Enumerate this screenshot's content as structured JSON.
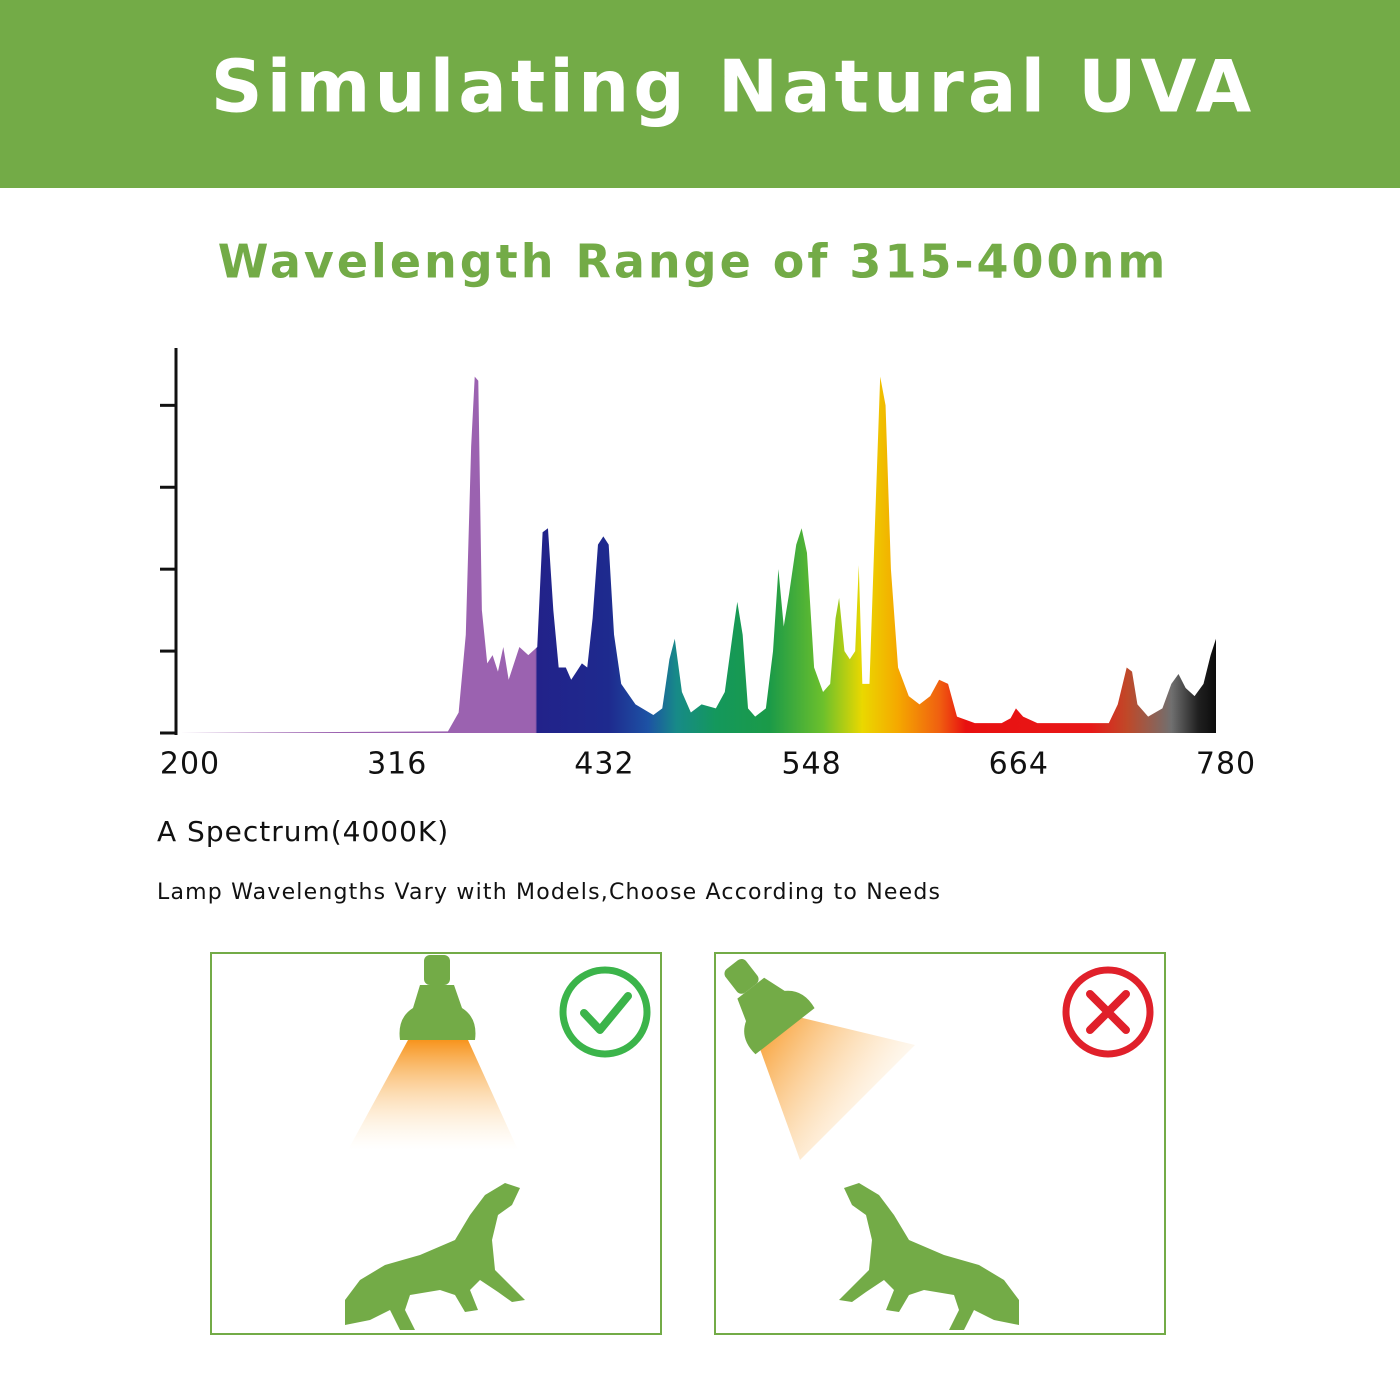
{
  "header": {
    "title": "Simulating Natural UVA"
  },
  "subtitle": "Wavelength Range of 315-400nm",
  "chart_data": {
    "type": "area",
    "caption": "A Spectrum(4000K)",
    "note": "Lamp Wavelengths Vary with Models,Choose According to Needs",
    "xlim": [
      200,
      780
    ],
    "xticks": [
      200,
      316,
      432,
      548,
      664,
      780
    ],
    "ylim": [
      0,
      4.7
    ],
    "yticks": [
      0,
      1,
      2,
      3,
      4
    ],
    "x": [
      200,
      350,
      356,
      360,
      363,
      365,
      367,
      369,
      372,
      375,
      378,
      381,
      384,
      387,
      390,
      395,
      400,
      403,
      406,
      409,
      412,
      416,
      419,
      422,
      425,
      428,
      431,
      434,
      437,
      440,
      443,
      447,
      455,
      465,
      470,
      474,
      477,
      481,
      486,
      492,
      500,
      505,
      510,
      512,
      515,
      518,
      522,
      528,
      532,
      535,
      538,
      541,
      545,
      548,
      551,
      555,
      560,
      564,
      567,
      569,
      572,
      575,
      578,
      580,
      582,
      586,
      589,
      592,
      595,
      598,
      602,
      608,
      614,
      620,
      625,
      630,
      635,
      645,
      660,
      665,
      668,
      672,
      680,
      700,
      720,
      725,
      730,
      733,
      736,
      742,
      750,
      755,
      759,
      763,
      768,
      773,
      777,
      780
    ],
    "values": [
      0,
      0.02,
      0.25,
      1.2,
      3.5,
      4.35,
      4.3,
      1.5,
      0.85,
      0.95,
      0.75,
      1.05,
      0.65,
      0.85,
      1.05,
      0.95,
      1.05,
      2.45,
      2.5,
      1.5,
      0.8,
      0.8,
      0.65,
      0.75,
      0.85,
      0.8,
      1.4,
      2.3,
      2.4,
      2.3,
      1.2,
      0.6,
      0.35,
      0.22,
      0.3,
      0.9,
      1.15,
      0.5,
      0.25,
      0.35,
      0.3,
      0.5,
      1.3,
      1.6,
      1.2,
      0.3,
      0.2,
      0.3,
      1.0,
      2.0,
      1.3,
      1.7,
      2.3,
      2.5,
      2.2,
      0.8,
      0.5,
      0.6,
      1.4,
      1.65,
      1.0,
      0.9,
      1.0,
      2.05,
      0.6,
      0.6,
      2.5,
      4.35,
      4.0,
      2.0,
      0.8,
      0.45,
      0.35,
      0.45,
      0.65,
      0.6,
      0.2,
      0.12,
      0.12,
      0.18,
      0.3,
      0.2,
      0.12,
      0.12,
      0.12,
      0.35,
      0.8,
      0.75,
      0.35,
      0.2,
      0.3,
      0.6,
      0.72,
      0.55,
      0.45,
      0.6,
      0.95,
      1.15
    ],
    "fill_stops": [
      {
        "x": 200,
        "color": "#9b62b0"
      },
      {
        "x": 399,
        "color": "#9b62b0"
      },
      {
        "x": 400,
        "color": "#22228a"
      },
      {
        "x": 440,
        "color": "#1e2a8e"
      },
      {
        "x": 462,
        "color": "#1d52a4"
      },
      {
        "x": 478,
        "color": "#178a88"
      },
      {
        "x": 500,
        "color": "#14985c"
      },
      {
        "x": 530,
        "color": "#1b9a48"
      },
      {
        "x": 560,
        "color": "#6cc02c"
      },
      {
        "x": 582,
        "color": "#ead800"
      },
      {
        "x": 602,
        "color": "#f5a800"
      },
      {
        "x": 625,
        "color": "#f06010"
      },
      {
        "x": 640,
        "color": "#e81010"
      },
      {
        "x": 710,
        "color": "#e81818"
      },
      {
        "x": 730,
        "color": "#c04828"
      },
      {
        "x": 755,
        "color": "#707070"
      },
      {
        "x": 770,
        "color": "#202020"
      },
      {
        "x": 780,
        "color": "#0c0c0c"
      }
    ]
  }
}
